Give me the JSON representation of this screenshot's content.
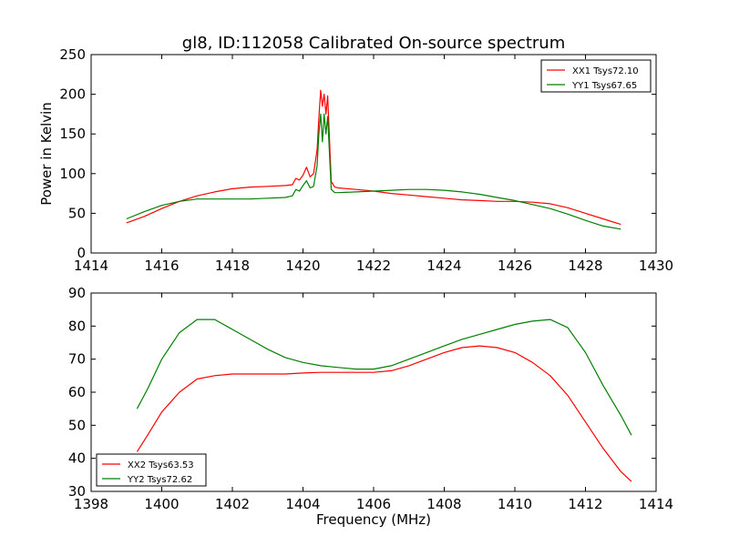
{
  "figure": {
    "title": "gl8, ID:112058 Calibrated On-source spectrum",
    "ylabel": "Power in Kelvin",
    "xlabel": "Frequency (MHz)"
  },
  "chart_data": [
    {
      "type": "line",
      "title": "gl8, ID:112058 Calibrated On-source spectrum",
      "ylabel": "Power in Kelvin",
      "xlabel": "",
      "xlim": [
        1414,
        1430
      ],
      "ylim": [
        0,
        250
      ],
      "xticks": [
        "1414",
        "1416",
        "1418",
        "1420",
        "1422",
        "1424",
        "1426",
        "1428",
        "1430"
      ],
      "yticks": [
        "0",
        "50",
        "100",
        "150",
        "200",
        "250"
      ],
      "grid": false,
      "legend_position": "top-right",
      "series": [
        {
          "name": "XX1 Tsys72.10",
          "color": "#ff0000",
          "x": [
            1415.0,
            1415.5,
            1416.0,
            1416.5,
            1417.0,
            1417.5,
            1418.0,
            1418.5,
            1419.0,
            1419.5,
            1419.7,
            1419.8,
            1419.9,
            1420.0,
            1420.1,
            1420.2,
            1420.3,
            1420.4,
            1420.45,
            1420.5,
            1420.55,
            1420.6,
            1420.65,
            1420.7,
            1420.8,
            1420.9,
            1421.0,
            1421.5,
            1422.0,
            1422.5,
            1423.0,
            1423.5,
            1424.0,
            1424.5,
            1425.0,
            1425.5,
            1426.0,
            1426.5,
            1427.0,
            1427.5,
            1428.0,
            1428.5,
            1429.0
          ],
          "y": [
            38,
            46,
            56,
            65,
            72,
            77,
            81,
            83,
            84,
            85,
            86,
            94,
            92,
            98,
            108,
            96,
            100,
            130,
            170,
            205,
            185,
            200,
            175,
            198,
            90,
            83,
            82,
            80,
            78,
            75,
            73,
            71,
            69,
            67,
            66,
            65,
            65,
            64,
            62,
            57,
            50,
            43,
            36
          ]
        },
        {
          "name": "YY1 Tsys67.65",
          "color": "#008000",
          "x": [
            1415.0,
            1415.5,
            1416.0,
            1416.5,
            1417.0,
            1417.5,
            1418.0,
            1418.5,
            1419.0,
            1419.5,
            1419.7,
            1419.8,
            1419.9,
            1420.0,
            1420.1,
            1420.2,
            1420.3,
            1420.4,
            1420.45,
            1420.5,
            1420.55,
            1420.6,
            1420.65,
            1420.7,
            1420.8,
            1420.9,
            1421.0,
            1421.5,
            1422.0,
            1422.5,
            1423.0,
            1423.5,
            1424.0,
            1424.5,
            1425.0,
            1425.5,
            1426.0,
            1426.5,
            1427.0,
            1427.5,
            1428.0,
            1428.5,
            1429.0
          ],
          "y": [
            43,
            52,
            60,
            65,
            68,
            68,
            68,
            68,
            69,
            70,
            72,
            80,
            78,
            85,
            91,
            82,
            84,
            110,
            150,
            175,
            140,
            175,
            150,
            172,
            80,
            76,
            76,
            77,
            78,
            79,
            80,
            80,
            79,
            77,
            74,
            70,
            66,
            61,
            56,
            49,
            41,
            34,
            30
          ]
        }
      ]
    },
    {
      "type": "line",
      "title": "",
      "ylabel": "",
      "xlabel": "Frequency (MHz)",
      "xlim": [
        1398,
        1414
      ],
      "ylim": [
        30,
        90
      ],
      "xticks": [
        "1398",
        "1400",
        "1402",
        "1404",
        "1406",
        "1408",
        "1410",
        "1412",
        "1414"
      ],
      "yticks": [
        "30",
        "40",
        "50",
        "60",
        "70",
        "80",
        "90"
      ],
      "grid": false,
      "legend_position": "bottom-left",
      "series": [
        {
          "name": "XX2 Tsys63.53",
          "color": "#ff0000",
          "x": [
            1399.3,
            1399.6,
            1400.0,
            1400.5,
            1401.0,
            1401.5,
            1402.0,
            1402.5,
            1403.0,
            1403.5,
            1404.0,
            1404.5,
            1405.0,
            1405.5,
            1406.0,
            1406.5,
            1407.0,
            1407.5,
            1408.0,
            1408.5,
            1409.0,
            1409.5,
            1410.0,
            1410.5,
            1411.0,
            1411.5,
            1412.0,
            1412.5,
            1413.0,
            1413.3
          ],
          "y": [
            42,
            47,
            54,
            60,
            64,
            65,
            65.5,
            65.5,
            65.5,
            65.5,
            65.8,
            66,
            66,
            66,
            66,
            66.5,
            68,
            70,
            72,
            73.5,
            74,
            73.5,
            72,
            69,
            65,
            59,
            51,
            43,
            36,
            33
          ]
        },
        {
          "name": "YY2 Tsys72.62",
          "color": "#008000",
          "x": [
            1399.3,
            1399.6,
            1400.0,
            1400.5,
            1401.0,
            1401.5,
            1402.0,
            1402.5,
            1403.0,
            1403.5,
            1404.0,
            1404.5,
            1405.0,
            1405.5,
            1406.0,
            1406.5,
            1407.0,
            1407.5,
            1408.0,
            1408.5,
            1409.0,
            1409.5,
            1410.0,
            1410.5,
            1411.0,
            1411.5,
            1412.0,
            1412.5,
            1413.0,
            1413.3
          ],
          "y": [
            55,
            61,
            70,
            78,
            82,
            82,
            79,
            76,
            73,
            70.5,
            69,
            68,
            67.5,
            67,
            67,
            68,
            70,
            72,
            74,
            76,
            77.5,
            79,
            80.5,
            81.5,
            82,
            79.5,
            72,
            62,
            53,
            47
          ]
        }
      ]
    }
  ]
}
